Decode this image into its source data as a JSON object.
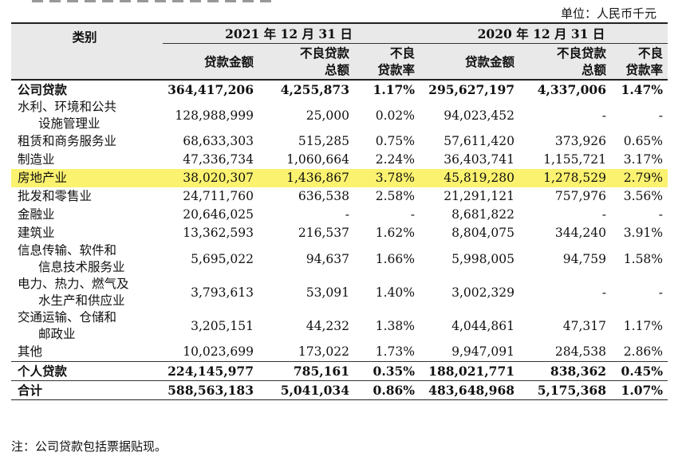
{
  "unit_label": "单位：人民币千元",
  "header": {
    "category": "类别",
    "year_2021": "2021 年 12 月 31 日",
    "year_2020": "2020 年 12 月 31 日",
    "loan_amount": "贷款金额",
    "npl_total_line1": "不良贷款",
    "npl_total_line2": "总额",
    "npl_rate_line1": "不良",
    "npl_rate_line2": "贷款率"
  },
  "rows": [
    {
      "name": "公司贷款",
      "v": [
        "364,417,206",
        "4,255,873",
        "1.17%",
        "295,627,197",
        "4,337,006",
        "1.47%"
      ]
    },
    {
      "name_l1": "水利、环境和公共",
      "name_l2": "设施管理业",
      "v": [
        "128,988,999",
        "25,000",
        "0.02%",
        "94,023,452",
        "-",
        "-"
      ]
    },
    {
      "name": "租赁和商务服务业",
      "v": [
        "68,633,303",
        "515,285",
        "0.75%",
        "57,611,420",
        "373,926",
        "0.65%"
      ]
    },
    {
      "name": "制造业",
      "v": [
        "47,336,734",
        "1,060,664",
        "2.24%",
        "36,403,741",
        "1,155,721",
        "3.17%"
      ]
    },
    {
      "name": "房地产业",
      "v": [
        "38,020,307",
        "1,436,867",
        "3.78%",
        "45,819,280",
        "1,278,529",
        "2.79%"
      ]
    },
    {
      "name": "批发和零售业",
      "v": [
        "24,711,760",
        "636,538",
        "2.58%",
        "21,291,121",
        "757,976",
        "3.56%"
      ]
    },
    {
      "name": "金融业",
      "v": [
        "20,646,025",
        "-",
        "-",
        "8,681,822",
        "-",
        "-"
      ]
    },
    {
      "name": "建筑业",
      "v": [
        "13,362,593",
        "216,537",
        "1.62%",
        "8,804,075",
        "344,240",
        "3.91%"
      ]
    },
    {
      "name_l1": "信息传输、软件和",
      "name_l2": "信息技术服务业",
      "v": [
        "5,695,022",
        "94,637",
        "1.66%",
        "5,998,005",
        "94,759",
        "1.58%"
      ]
    },
    {
      "name_l1": "电力、热力、燃气及",
      "name_l2": "水生产和供应业",
      "v": [
        "3,793,613",
        "53,091",
        "1.40%",
        "3,002,329",
        "-",
        "-"
      ]
    },
    {
      "name_l1": "交通运输、仓储和",
      "name_l2": "邮政业",
      "v": [
        "3,205,151",
        "44,232",
        "1.38%",
        "4,044,861",
        "47,317",
        "1.17%"
      ]
    },
    {
      "name": "其他",
      "v": [
        "10,023,699",
        "173,022",
        "1.73%",
        "9,947,091",
        "284,538",
        "2.86%"
      ]
    },
    {
      "name": "个人贷款",
      "v": [
        "224,145,977",
        "785,161",
        "0.35%",
        "188,021,771",
        "838,362",
        "0.45%"
      ]
    },
    {
      "name": "合计",
      "v": [
        "588,563,183",
        "5,041,034",
        "0.86%",
        "483,648,968",
        "5,175,368",
        "1.07%"
      ]
    }
  ],
  "highlight_color": "#fbf26f",
  "note": "注：公司贷款包括票据贴现。"
}
